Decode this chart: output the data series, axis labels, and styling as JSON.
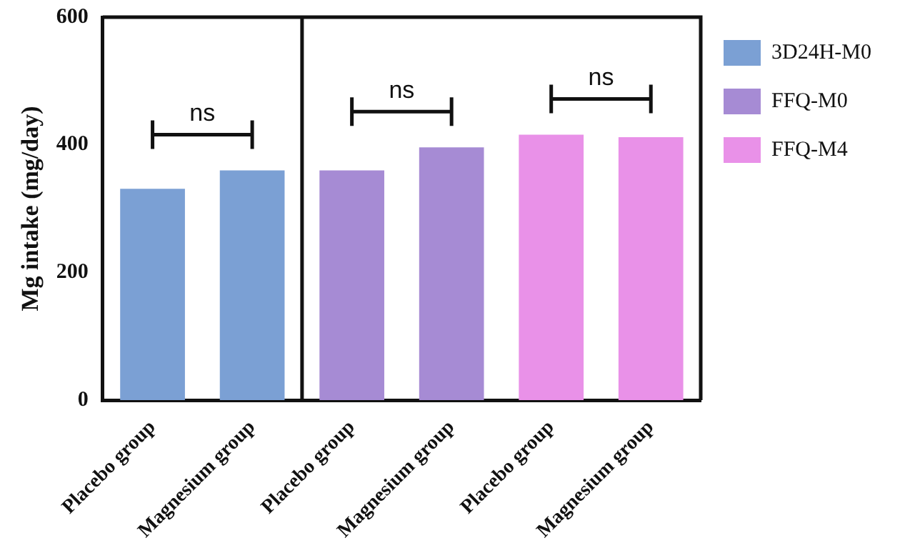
{
  "chart_data": {
    "type": "bar",
    "ylabel": "Mg intake (mg/day)",
    "categories": [
      "Placebo group",
      "Magnesium group",
      "Placebo group",
      "Magnesium group",
      "Placebo group",
      "Magnesium group"
    ],
    "series": [
      {
        "name": "3D24H-M0",
        "color": "#7ba0d4",
        "values": [
          331,
          360,
          null,
          null,
          null,
          null
        ]
      },
      {
        "name": "FFQ-M0",
        "color": "#a68bd4",
        "values": [
          null,
          null,
          360,
          396,
          null,
          null
        ]
      },
      {
        "name": "FFQ-M4",
        "color": "#e991e8",
        "values": [
          null,
          null,
          null,
          null,
          416,
          412
        ]
      }
    ],
    "ylim": [
      0,
      600
    ],
    "yticks": [
      0,
      200,
      400,
      600
    ],
    "annotations": [
      "ns",
      "ns",
      "ns"
    ],
    "grid": false,
    "legend": "right"
  }
}
